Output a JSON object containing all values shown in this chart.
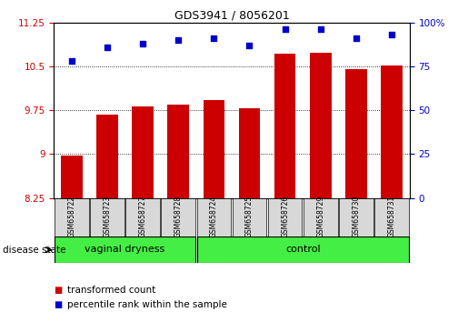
{
  "title": "GDS3941 / 8056201",
  "samples": [
    "GSM658722",
    "GSM658723",
    "GSM658727",
    "GSM658728",
    "GSM658724",
    "GSM658725",
    "GSM658726",
    "GSM658729",
    "GSM658730",
    "GSM658731"
  ],
  "bar_values": [
    8.97,
    9.68,
    9.82,
    9.84,
    9.92,
    9.78,
    10.72,
    10.74,
    10.46,
    10.52
  ],
  "dot_values": [
    78,
    86,
    88,
    90,
    91,
    87,
    96,
    96,
    91,
    93
  ],
  "ylim_left": [
    8.25,
    11.25
  ],
  "ylim_right": [
    0,
    100
  ],
  "yticks_left": [
    8.25,
    9.0,
    9.75,
    10.5,
    11.25
  ],
  "ytick_labels_left": [
    "8.25",
    "9",
    "9.75",
    "10.5",
    "11.25"
  ],
  "yticks_right": [
    0,
    25,
    50,
    75,
    100
  ],
  "ytick_labels_right": [
    "0",
    "25",
    "50",
    "75",
    "100%"
  ],
  "bar_color": "#cc0000",
  "dot_color": "#0000cc",
  "grid_yticks": [
    9.0,
    9.75,
    10.5
  ],
  "group1_label": "vaginal dryness",
  "group2_label": "control",
  "group1_count": 4,
  "group2_count": 6,
  "disease_state_label": "disease state",
  "legend1_label": "transformed count",
  "legend2_label": "percentile rank within the sample",
  "background_color": "#ffffff",
  "plot_bg_color": "#ffffff",
  "group_bg_color": "#44ee44",
  "sample_bg_color": "#d8d8d8"
}
